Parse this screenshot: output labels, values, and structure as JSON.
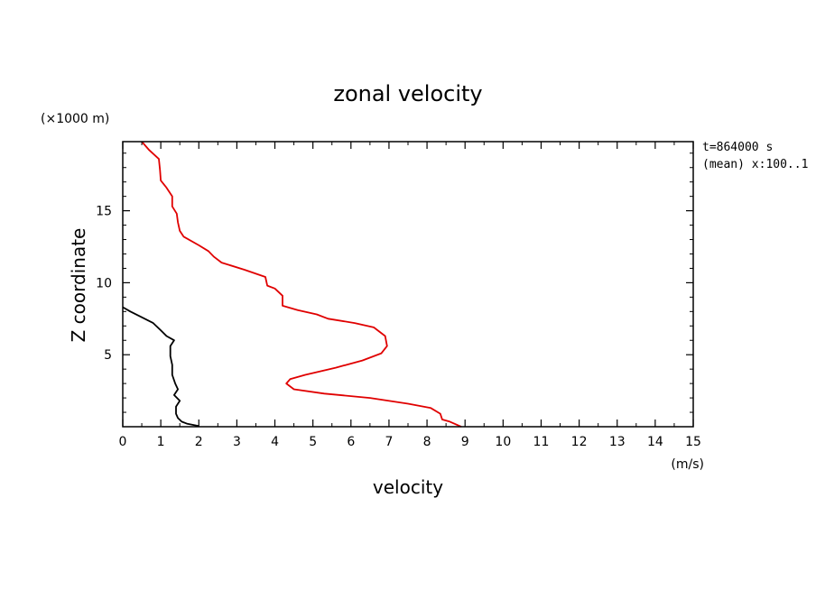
{
  "chart_data": {
    "type": "line",
    "title": "zonal velocity",
    "xlabel": "velocity",
    "xunit": "(m/s)",
    "ylabel": "Z coordinate",
    "yunit": "(×1000 m)",
    "annotations": [
      "t=864000 s",
      "(mean) x:100..1"
    ],
    "xlim": [
      0,
      15
    ],
    "ylim": [
      0,
      19.8
    ],
    "x_ticks": [
      0,
      1,
      2,
      3,
      4,
      5,
      6,
      7,
      8,
      9,
      10,
      11,
      12,
      13,
      14,
      15
    ],
    "y_ticks": [
      5,
      10,
      15
    ],
    "grid": false,
    "series": [
      {
        "color": "#e00000",
        "points": [
          [
            0.5,
            19.8
          ],
          [
            0.7,
            19.2
          ],
          [
            0.95,
            18.6
          ],
          [
            0.98,
            17.8
          ],
          [
            1.0,
            17.1
          ],
          [
            1.15,
            16.6
          ],
          [
            1.3,
            16.0
          ],
          [
            1.3,
            15.3
          ],
          [
            1.42,
            14.8
          ],
          [
            1.45,
            14.2
          ],
          [
            1.5,
            13.6
          ],
          [
            1.6,
            13.2
          ],
          [
            2.0,
            12.6
          ],
          [
            2.25,
            12.2
          ],
          [
            2.4,
            11.8
          ],
          [
            2.6,
            11.4
          ],
          [
            3.2,
            10.9
          ],
          [
            3.75,
            10.4
          ],
          [
            3.8,
            9.8
          ],
          [
            4.0,
            9.6
          ],
          [
            4.2,
            9.1
          ],
          [
            4.2,
            8.4
          ],
          [
            4.6,
            8.1
          ],
          [
            5.1,
            7.8
          ],
          [
            5.4,
            7.5
          ],
          [
            6.1,
            7.2
          ],
          [
            6.6,
            6.9
          ],
          [
            6.9,
            6.3
          ],
          [
            6.95,
            5.6
          ],
          [
            6.8,
            5.1
          ],
          [
            6.3,
            4.6
          ],
          [
            5.6,
            4.1
          ],
          [
            4.8,
            3.6
          ],
          [
            4.4,
            3.3
          ],
          [
            4.3,
            3.0
          ],
          [
            4.5,
            2.6
          ],
          [
            5.3,
            2.3
          ],
          [
            6.5,
            2.0
          ],
          [
            7.5,
            1.6
          ],
          [
            8.1,
            1.3
          ],
          [
            8.35,
            0.9
          ],
          [
            8.4,
            0.5
          ],
          [
            8.6,
            0.35
          ],
          [
            8.9,
            0.0
          ]
        ]
      },
      {
        "color": "#000000",
        "points": [
          [
            0.0,
            8.3
          ],
          [
            0.2,
            8.0
          ],
          [
            0.5,
            7.6
          ],
          [
            0.8,
            7.2
          ],
          [
            1.0,
            6.7
          ],
          [
            1.15,
            6.3
          ],
          [
            1.35,
            6.0
          ],
          [
            1.25,
            5.6
          ],
          [
            1.25,
            4.9
          ],
          [
            1.3,
            4.3
          ],
          [
            1.3,
            3.6
          ],
          [
            1.38,
            3.0
          ],
          [
            1.45,
            2.6
          ],
          [
            1.35,
            2.2
          ],
          [
            1.5,
            1.8
          ],
          [
            1.4,
            1.4
          ],
          [
            1.4,
            0.9
          ],
          [
            1.45,
            0.6
          ],
          [
            1.55,
            0.35
          ],
          [
            1.7,
            0.2
          ],
          [
            2.0,
            0.05
          ]
        ]
      }
    ]
  }
}
